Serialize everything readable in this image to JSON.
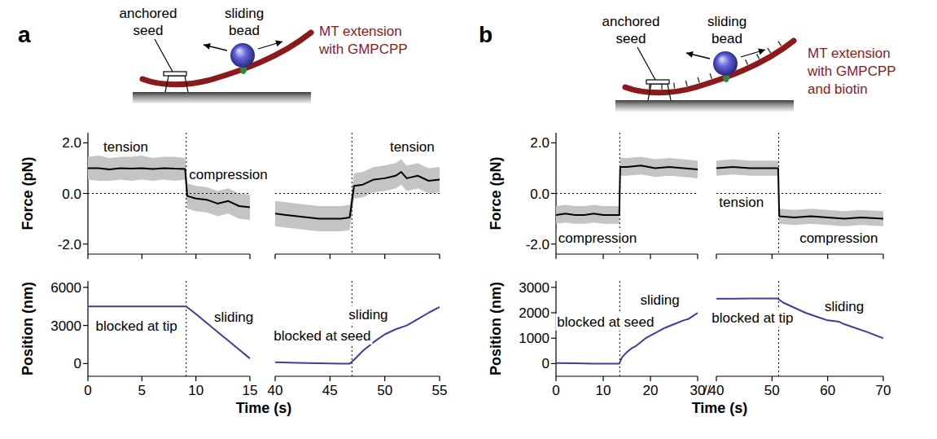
{
  "panels": [
    {
      "letter": "a",
      "diagram": {
        "seed_label": [
          "anchored",
          "seed"
        ],
        "bead_label": [
          "sliding",
          "bead"
        ],
        "mt_label": [
          "MT extension",
          "with GMPCPP"
        ],
        "biotin": false
      }
    },
    {
      "letter": "b",
      "diagram": {
        "seed_label": [
          "anchored",
          "seed"
        ],
        "bead_label": [
          "sliding",
          "bead"
        ],
        "mt_label": [
          "MT extension",
          "with GMPCPP",
          "and biotin"
        ],
        "biotin": true
      }
    }
  ],
  "chart_data": [
    {
      "type": "line",
      "y_label": "Force (pN)",
      "ylim": [
        -2.4,
        2.4
      ],
      "yticks": [
        {
          "value": -2,
          "label": "-2.0"
        },
        {
          "value": 0,
          "label": "0.0"
        },
        {
          "value": 2,
          "label": "2.0"
        }
      ],
      "reference_y": 0,
      "tick_labels": "y",
      "segments": [
        {
          "xlim": [
            0,
            15
          ],
          "xticks": [
            0,
            5,
            10,
            15
          ],
          "event_x": 9.1,
          "series": [
            {
              "type": "band",
              "color": "#c4c4c4",
              "x": [
                0,
                1,
                2,
                3,
                4,
                5,
                6,
                7,
                8,
                9,
                9.2,
                10,
                11,
                12,
                13,
                14,
                15
              ],
              "low": [
                0.55,
                0.5,
                0.5,
                0.55,
                0.5,
                0.55,
                0.5,
                0.55,
                0.5,
                0.55,
                -0.6,
                -0.7,
                -0.75,
                -0.9,
                -0.8,
                -1,
                -1.05
              ],
              "high": [
                1.45,
                1.5,
                1.4,
                1.45,
                1.45,
                1.5,
                1.4,
                1.45,
                1.45,
                1.4,
                0.4,
                0.3,
                0.25,
                0.1,
                0.2,
                0,
                -0.05
              ]
            },
            {
              "type": "line",
              "color": "#000000",
              "x": [
                0,
                1,
                2,
                3,
                4,
                5,
                6,
                7,
                8,
                9,
                9.2,
                10,
                11,
                12,
                13,
                14,
                15
              ],
              "values": [
                1,
                1,
                0.95,
                1,
                0.98,
                1,
                0.97,
                1,
                0.98,
                0.97,
                -0.1,
                -0.2,
                -0.25,
                -0.4,
                -0.3,
                -0.5,
                -0.55
              ]
            }
          ],
          "annotations": [
            {
              "text": "tension",
              "x": 3.5,
              "y": 1.85
            },
            {
              "text": "compression",
              "x": 13,
              "y": 0.75
            }
          ]
        },
        {
          "xlim": [
            40,
            55
          ],
          "xticks": [
            40,
            45,
            50,
            55
          ],
          "event_x": 47,
          "series": [
            {
              "type": "band",
              "color": "#c4c4c4",
              "x": [
                40,
                41,
                42,
                43,
                44,
                45,
                46,
                46.8,
                47.2,
                48,
                49,
                50,
                51,
                51.5,
                52,
                53,
                54,
                55
              ],
              "low": [
                -1.3,
                -1.35,
                -1.4,
                -1.45,
                -1.5,
                -1.5,
                -1.5,
                -1.45,
                -0.2,
                -0.15,
                0.05,
                0.1,
                0.2,
                0.35,
                0.1,
                0.2,
                0,
                0.05
              ],
              "high": [
                -0.3,
                -0.35,
                -0.4,
                -0.45,
                -0.5,
                -0.5,
                -0.5,
                -0.45,
                0.8,
                0.85,
                1.05,
                1.1,
                1.2,
                1.35,
                1.1,
                1.2,
                1,
                1.05
              ]
            },
            {
              "type": "line",
              "color": "#000000",
              "x": [
                40,
                41,
                42,
                43,
                44,
                45,
                46,
                46.8,
                47.2,
                48,
                49,
                50,
                51,
                51.5,
                52,
                53,
                54,
                55
              ],
              "values": [
                -0.8,
                -0.85,
                -0.9,
                -0.95,
                -1,
                -1,
                -1,
                -0.95,
                0.3,
                0.35,
                0.55,
                0.6,
                0.7,
                0.85,
                0.6,
                0.7,
                0.5,
                0.55
              ]
            }
          ],
          "annotations": [
            {
              "text": "tension",
              "x": 52.5,
              "y": 1.85
            }
          ]
        }
      ]
    },
    {
      "type": "line",
      "y_label": "Position (nm)",
      "x_label": "Time (s)",
      "ylim": [
        -1000,
        6500
      ],
      "yticks": [
        0,
        3000,
        6000
      ],
      "segments": [
        {
          "xlim": [
            0,
            15
          ],
          "xticks": [
            0,
            5,
            10,
            15
          ],
          "event_x": 9.1,
          "series": [
            {
              "type": "line",
              "color": "#3d3d9e",
              "x": [
                0,
                3,
                6,
                9,
                9.1,
                10,
                11,
                12,
                13,
                14,
                15
              ],
              "values": [
                4500,
                4500,
                4500,
                4500,
                4500,
                3900,
                3200,
                2500,
                1800,
                1100,
                400
              ]
            }
          ],
          "annotations": [
            {
              "text": "blocked at tip",
              "x": 4.5,
              "y": 3000
            },
            {
              "text": "sliding",
              "x": 13.5,
              "y": 3700
            }
          ]
        },
        {
          "xlim": [
            40,
            55
          ],
          "xticks": [
            40,
            45,
            50,
            55
          ],
          "event_x": 47,
          "series": [
            {
              "type": "line",
              "color": "#3d3d9e",
              "x": [
                40,
                42,
                44,
                46,
                46.8,
                47.2,
                48,
                49,
                50,
                51,
                52,
                53,
                54,
                55
              ],
              "values": [
                100,
                60,
                20,
                0,
                0,
                300,
                1000,
                1700,
                2300,
                2700,
                3000,
                3500,
                4000,
                4450
              ]
            }
          ],
          "annotations": [
            {
              "text": "blocked at seed",
              "x": 44.3,
              "y": 2200
            },
            {
              "text": "sliding",
              "x": 48.5,
              "y": 3900
            }
          ]
        }
      ]
    },
    {
      "type": "line",
      "y_label": "Force (pN)",
      "ylim": [
        -2.4,
        2.4
      ],
      "yticks": [
        {
          "value": -2,
          "label": "-2.0"
        },
        {
          "value": 0,
          "label": "0.0"
        },
        {
          "value": 2,
          "label": "2.0"
        }
      ],
      "reference_y": 0,
      "tick_labels": "y",
      "segments": [
        {
          "xlim": [
            0,
            30
          ],
          "xticks": [
            0,
            10,
            20,
            30
          ],
          "event_x": 13.5,
          "series": [
            {
              "type": "band",
              "color": "#c4c4c4",
              "x": [
                0,
                2,
                4,
                6,
                8,
                10,
                12,
                13.4,
                13.6,
                15,
                18,
                21,
                24,
                27,
                30
              ],
              "low": [
                -1.2,
                -1.15,
                -1.2,
                -1.2,
                -1.15,
                -1.2,
                -1.2,
                -1.2,
                0.7,
                0.7,
                0.75,
                0.65,
                0.7,
                0.65,
                0.6
              ],
              "high": [
                -0.5,
                -0.45,
                -0.5,
                -0.5,
                -0.45,
                -0.5,
                -0.5,
                -0.5,
                1.4,
                1.4,
                1.45,
                1.35,
                1.4,
                1.35,
                1.3
              ]
            },
            {
              "type": "line",
              "color": "#000000",
              "x": [
                0,
                2,
                4,
                6,
                8,
                10,
                12,
                13.4,
                13.6,
                15,
                18,
                21,
                24,
                27,
                30
              ],
              "values": [
                -0.85,
                -0.8,
                -0.85,
                -0.85,
                -0.8,
                -0.85,
                -0.85,
                -0.85,
                1.05,
                1.05,
                1.1,
                1,
                1.05,
                1,
                0.95
              ]
            }
          ],
          "annotations": [
            {
              "text": "compression",
              "x": 8.8,
              "y": -1.75
            }
          ]
        },
        {
          "xlim": [
            40,
            70
          ],
          "xticks": [
            40,
            50,
            60,
            70
          ],
          "event_x": 51.2,
          "series": [
            {
              "type": "band",
              "color": "#c4c4c4",
              "x": [
                40,
                43,
                46,
                49,
                51.1,
                51.3,
                54,
                57,
                60,
                63,
                66,
                70
              ],
              "low": [
                0.7,
                0.75,
                0.7,
                0.7,
                0.7,
                -1.2,
                -1.25,
                -1.2,
                -1.25,
                -1.3,
                -1.25,
                -1.3
              ],
              "high": [
                1.3,
                1.35,
                1.3,
                1.3,
                1.3,
                -0.6,
                -0.65,
                -0.6,
                -0.65,
                -0.7,
                -0.65,
                -0.7
              ]
            },
            {
              "type": "line",
              "color": "#000000",
              "x": [
                40,
                43,
                46,
                49,
                51.1,
                51.3,
                54,
                57,
                60,
                63,
                66,
                70
              ],
              "values": [
                1,
                1.05,
                1,
                1,
                1,
                -0.9,
                -0.95,
                -0.9,
                -0.95,
                -1,
                -0.95,
                -1
              ]
            }
          ],
          "annotations": [
            {
              "text": "tension",
              "x": 44.5,
              "y": -0.35
            },
            {
              "text": "compression",
              "x": 62,
              "y": -1.75
            }
          ]
        }
      ]
    },
    {
      "type": "line",
      "y_label": "Position (nm)",
      "x_label": "Time (s)",
      "x_break": "//",
      "ylim": [
        -500,
        3250
      ],
      "yticks": [
        0,
        1000,
        2000,
        3000
      ],
      "segments": [
        {
          "xlim": [
            0,
            30
          ],
          "xticks": [
            0,
            10,
            20,
            30
          ],
          "event_x": 13.5,
          "series": [
            {
              "type": "line",
              "color": "#3d3d9e",
              "x": [
                0,
                4,
                8,
                12,
                13.4,
                14,
                15,
                16,
                17,
                19,
                21,
                23,
                25,
                27,
                28,
                30
              ],
              "values": [
                20,
                10,
                0,
                0,
                0,
                250,
                450,
                600,
                700,
                1000,
                1200,
                1400,
                1550,
                1700,
                1750,
                2000
              ]
            }
          ],
          "annotations": [
            {
              "text": "blocked at seed",
              "x": 10.5,
              "y": 1650
            },
            {
              "text": "sliding",
              "x": 22,
              "y": 2500
            }
          ]
        },
        {
          "xlim": [
            40,
            70
          ],
          "xticks": [
            40,
            50,
            60,
            70
          ],
          "event_x": 51.2,
          "series": [
            {
              "type": "line",
              "color": "#3d3d9e",
              "x": [
                40,
                43,
                46,
                49,
                51,
                51.5,
                52,
                54,
                56,
                58,
                60,
                61,
                62,
                63,
                65,
                67,
                70
              ],
              "values": [
                2550,
                2550,
                2560,
                2560,
                2560,
                2480,
                2400,
                2200,
                2000,
                1850,
                1700,
                1680,
                1650,
                1550,
                1400,
                1250,
                1000
              ]
            }
          ],
          "annotations": [
            {
              "text": "blocked at tip",
              "x": 46.5,
              "y": 1800
            },
            {
              "text": "sliding",
              "x": 63,
              "y": 2250
            }
          ]
        }
      ]
    }
  ]
}
